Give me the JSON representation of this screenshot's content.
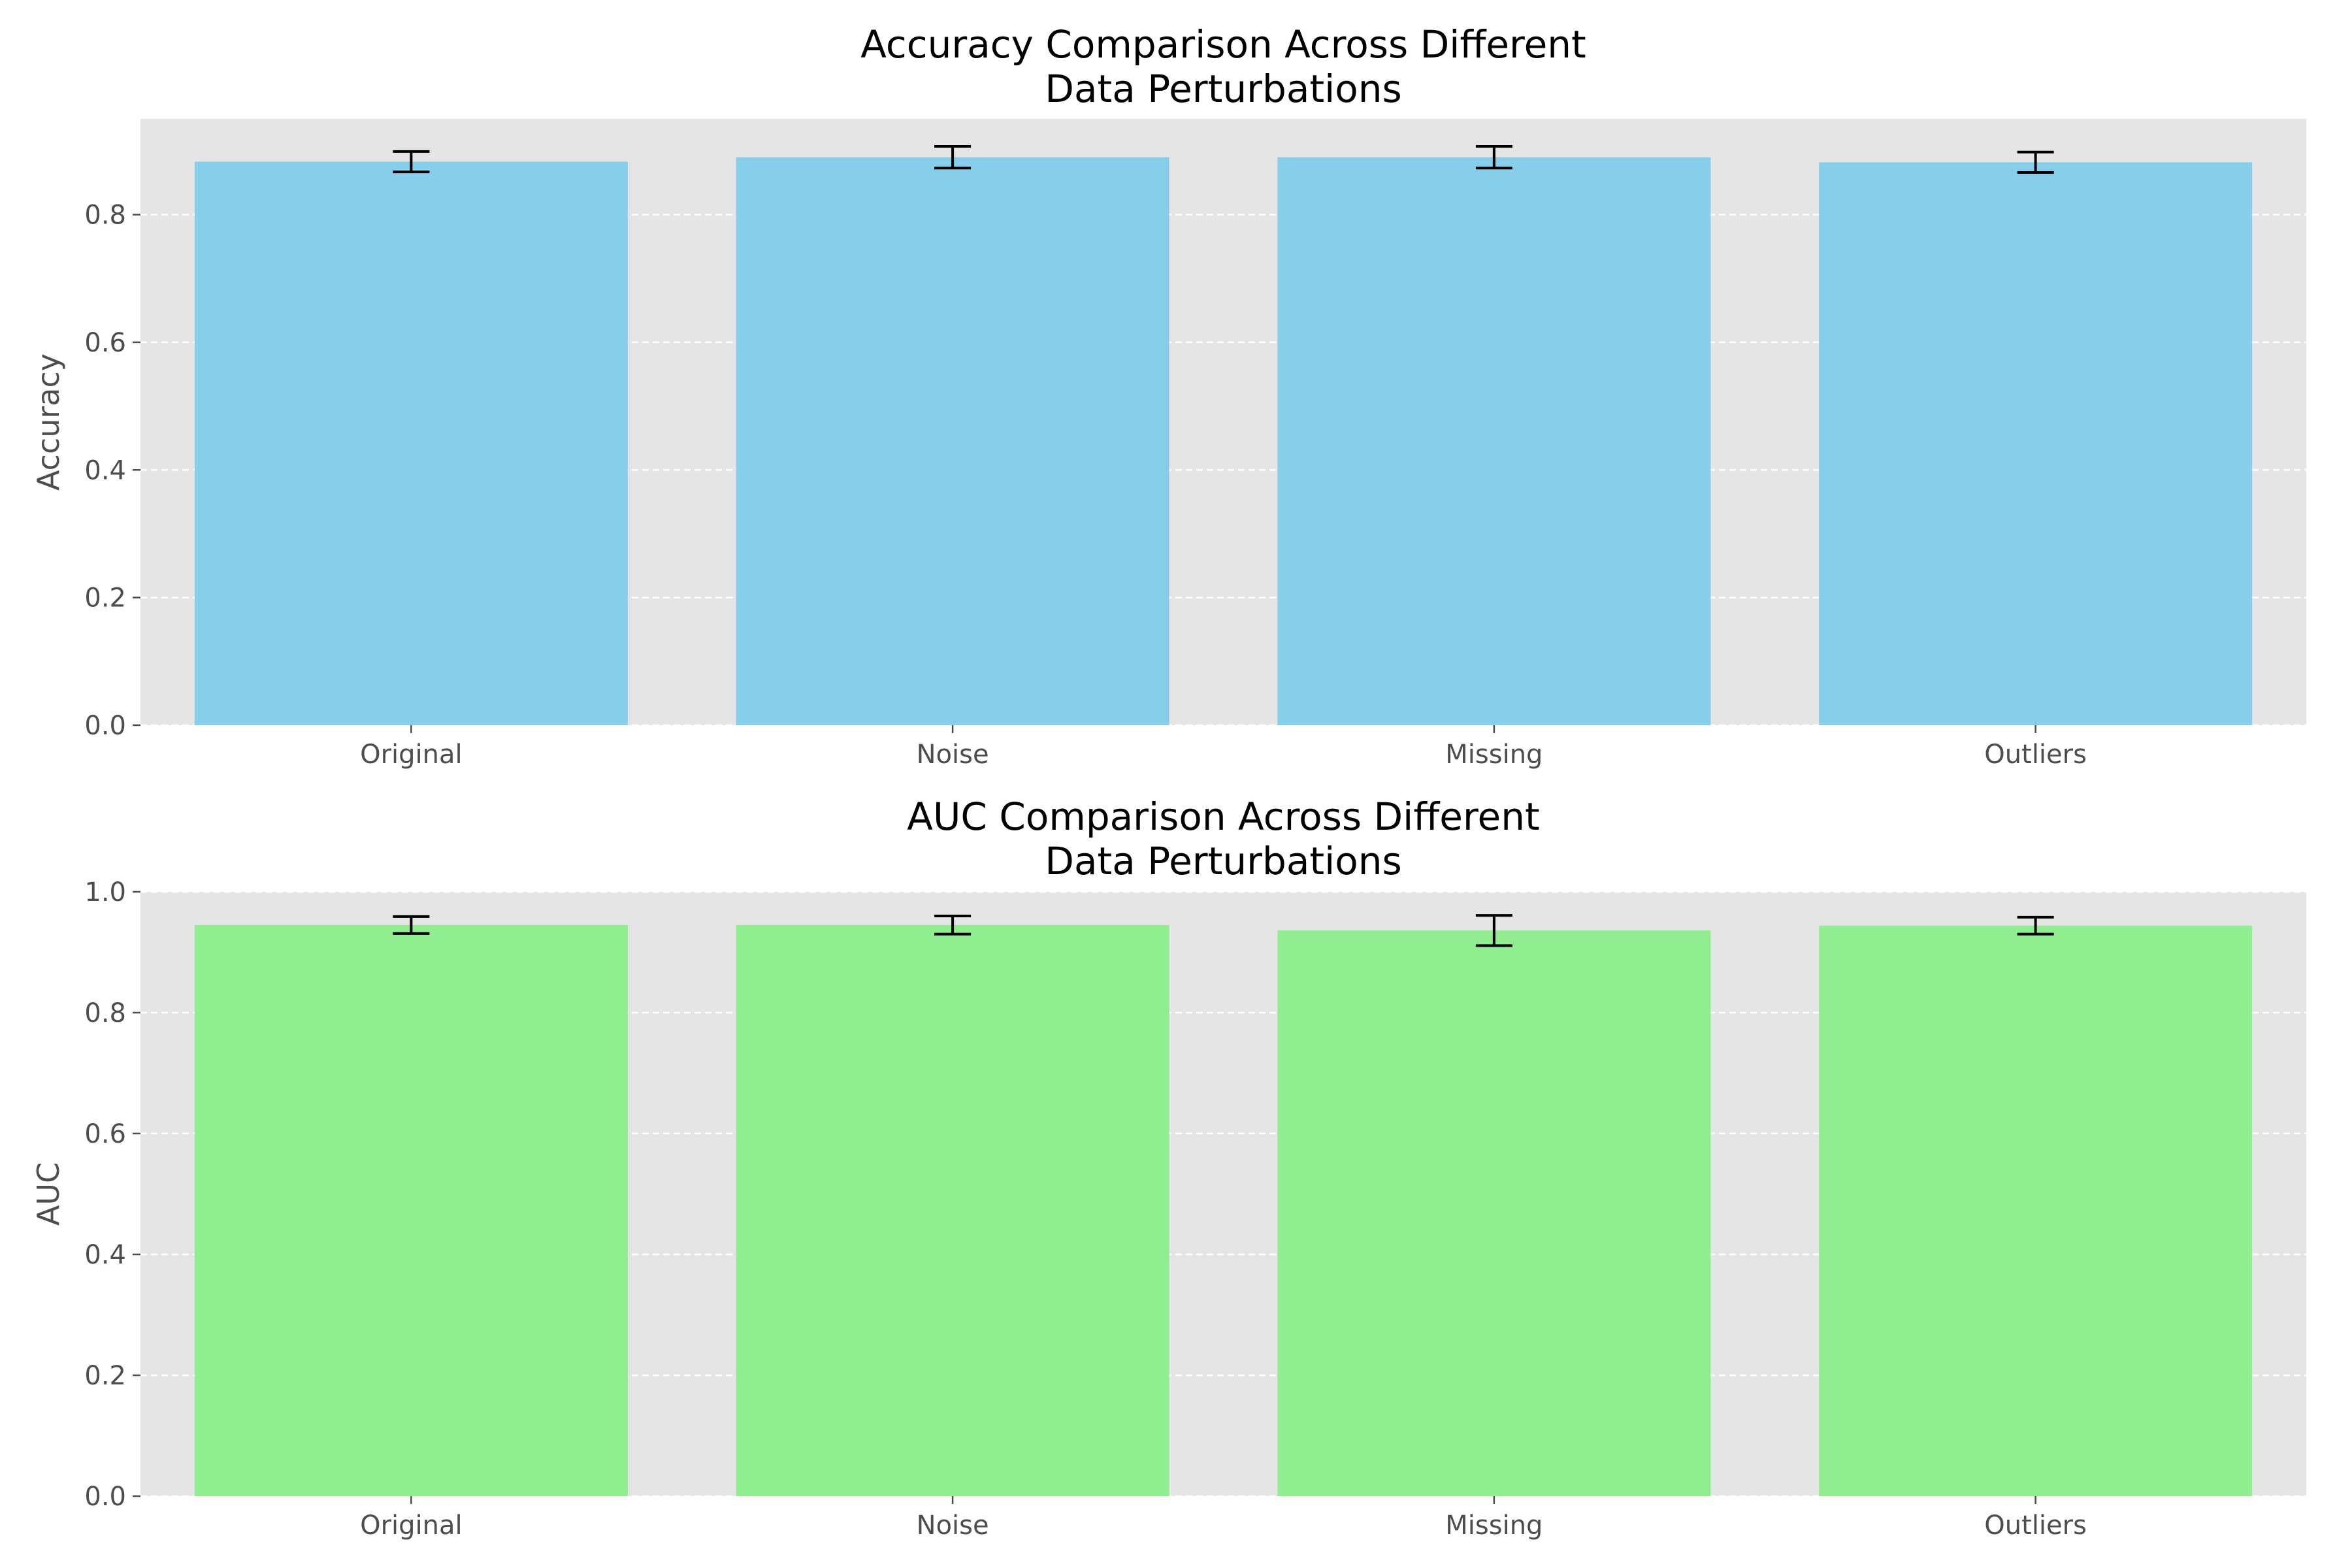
{
  "chart_data": [
    {
      "type": "bar",
      "title_lines": [
        "Accuracy Comparison Across Different",
        "Data Perturbations"
      ],
      "xlabel": "",
      "ylabel": "Accuracy",
      "categories": [
        "Original",
        "Noise",
        "Missing",
        "Outliers"
      ],
      "values": [
        0.883,
        0.89,
        0.89,
        0.882
      ],
      "errors": [
        0.016,
        0.017,
        0.017,
        0.016
      ],
      "ylim": [
        0,
        0.95
      ],
      "yticks": [
        0.0,
        0.2,
        0.4,
        0.6,
        0.8
      ],
      "ytick_labels": [
        "0.0",
        "0.2",
        "0.4",
        "0.6",
        "0.8"
      ],
      "grid": "y-dashed",
      "bar_color": "#87CEEB",
      "error_color": "#000000",
      "background": "#E5E5E5"
    },
    {
      "type": "bar",
      "title_lines": [
        "AUC Comparison Across Different",
        "Data Perturbations"
      ],
      "xlabel": "",
      "ylabel": "AUC",
      "categories": [
        "Original",
        "Noise",
        "Missing",
        "Outliers"
      ],
      "values": [
        0.945,
        0.945,
        0.936,
        0.944
      ],
      "errors": [
        0.014,
        0.015,
        0.025,
        0.014
      ],
      "ylim": [
        0,
        1.0
      ],
      "yticks": [
        0.0,
        0.2,
        0.4,
        0.6,
        0.8,
        1.0
      ],
      "ytick_labels": [
        "0.0",
        "0.2",
        "0.4",
        "0.6",
        "0.8",
        "1.0"
      ],
      "grid": "y-dashed",
      "bar_color": "#90EE90",
      "error_color": "#000000",
      "background": "#E5E5E5"
    }
  ]
}
